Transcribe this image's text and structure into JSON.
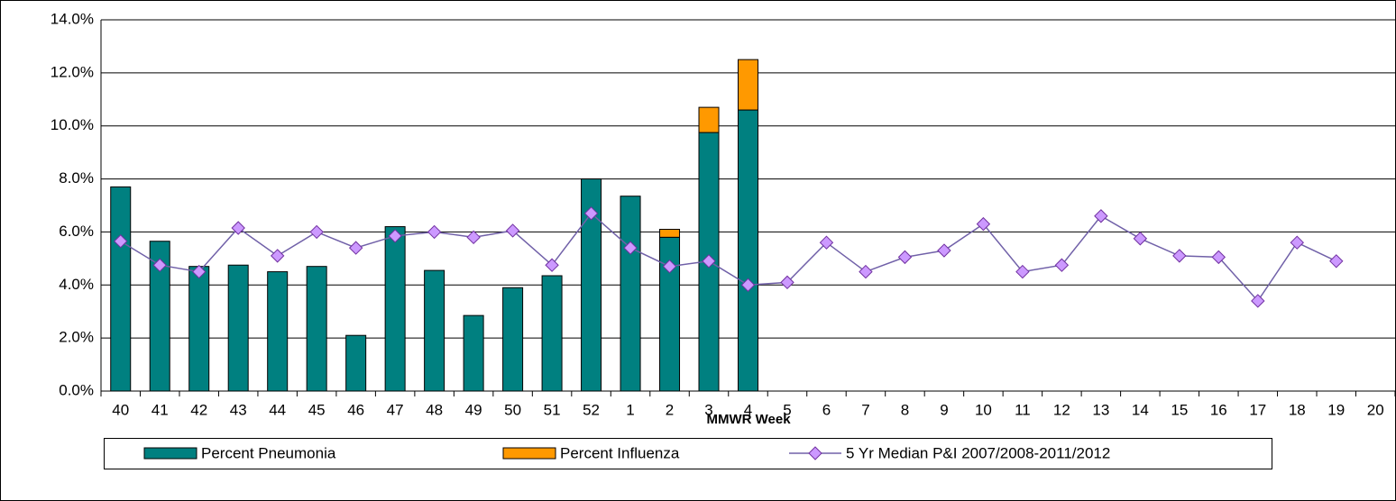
{
  "chart_data": {
    "type": "bar",
    "x_label": "MMWR Week",
    "categories": [
      "40",
      "41",
      "42",
      "43",
      "44",
      "45",
      "46",
      "47",
      "48",
      "49",
      "50",
      "51",
      "52",
      "1",
      "2",
      "3",
      "4",
      "5",
      "6",
      "7",
      "8",
      "9",
      "10",
      "11",
      "12",
      "13",
      "14",
      "15",
      "16",
      "17",
      "18",
      "19",
      "20"
    ],
    "series": [
      {
        "name": "Percent Pneumonia",
        "color": "#008080",
        "kind": "bar",
        "values": [
          7.7,
          5.65,
          4.7,
          4.75,
          4.5,
          4.7,
          2.1,
          6.2,
          4.55,
          2.85,
          3.9,
          4.35,
          8.0,
          7.35,
          5.8,
          9.75,
          10.6,
          null,
          null,
          null,
          null,
          null,
          null,
          null,
          null,
          null,
          null,
          null,
          null,
          null,
          null,
          null,
          null
        ]
      },
      {
        "name": "Percent Influenza",
        "color": "#ff9900",
        "kind": "bar",
        "values": [
          0,
          0,
          0,
          0,
          0,
          0,
          0,
          0,
          0,
          0,
          0,
          0,
          0,
          0,
          0.3,
          0.95,
          1.9,
          null,
          null,
          null,
          null,
          null,
          null,
          null,
          null,
          null,
          null,
          null,
          null,
          null,
          null,
          null,
          null
        ]
      },
      {
        "name": "5 Yr Median P&I 2007/2008-2011/2012",
        "color": "#7060a8",
        "marker_color": "#cc99ff",
        "kind": "line",
        "values": [
          5.65,
          4.75,
          4.5,
          6.15,
          5.1,
          6.0,
          5.4,
          5.85,
          6.0,
          5.8,
          6.05,
          4.75,
          6.7,
          5.4,
          4.7,
          4.9,
          4.0,
          4.1,
          5.6,
          4.5,
          5.05,
          5.3,
          6.3,
          4.5,
          4.75,
          6.6,
          5.75,
          5.1,
          5.05,
          3.4,
          5.6,
          4.9,
          null
        ]
      }
    ],
    "stacked": true,
    "ylim": [
      0,
      14
    ],
    "yticks": [
      {
        "value": 0,
        "label": "0.0%"
      },
      {
        "value": 2,
        "label": "2.0%"
      },
      {
        "value": 4,
        "label": "4.0%"
      },
      {
        "value": 6,
        "label": "6.0%"
      },
      {
        "value": 8,
        "label": "8.0%"
      },
      {
        "value": 10,
        "label": "10.0%"
      },
      {
        "value": 12,
        "label": "12.0%"
      },
      {
        "value": 14,
        "label": "14.0%"
      }
    ],
    "grid": true,
    "legend": "bottom"
  }
}
